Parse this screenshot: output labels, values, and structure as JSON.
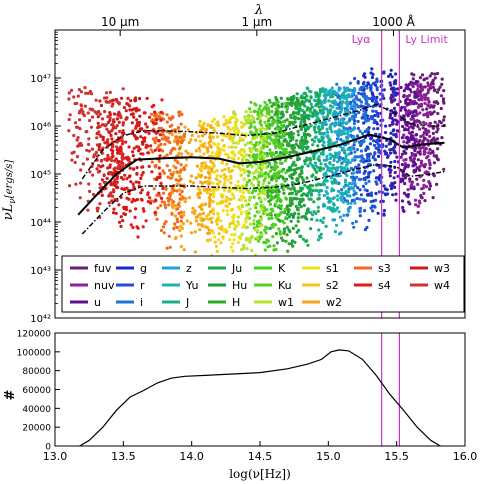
{
  "chart_data": [
    {
      "type": "scatter",
      "top_axis": {
        "label": "λ",
        "ticks": [
          {
            "label": "10 μm",
            "lambda_m": 1e-05
          },
          {
            "label": "1 μm",
            "lambda_m": 1e-06
          },
          {
            "label": "1000 Å",
            "lambda_m": 1e-07
          }
        ]
      },
      "ylabel": "νL_ν[ergs/s]",
      "yscale": "log",
      "xlim": [
        13.0,
        16.0
      ],
      "ylim_log": [
        42,
        48
      ],
      "y_ticks": [
        {
          "label": "10⁴²",
          "exp": 42
        },
        {
          "label": "10⁴³",
          "exp": 43
        },
        {
          "label": "10⁴⁴",
          "exp": 44
        },
        {
          "label": "10⁴⁵",
          "exp": 45
        },
        {
          "label": "10⁴⁶",
          "exp": 46
        },
        {
          "label": "10⁴⁷",
          "exp": 47
        }
      ],
      "vlines": [
        {
          "label": "Lyα",
          "x": 15.39,
          "color": "#cc33cc"
        },
        {
          "label": "Ly Limit",
          "x": 15.52,
          "color": "#cc33cc"
        }
      ],
      "median_curve": {
        "x": [
          13.17,
          13.3,
          13.45,
          13.6,
          13.8,
          14.0,
          14.2,
          14.35,
          14.5,
          14.7,
          14.9,
          15.1,
          15.3,
          15.45,
          15.55,
          15.7,
          15.85
        ],
        "y": [
          44.15,
          44.55,
          45.0,
          45.3,
          45.33,
          45.35,
          45.32,
          45.22,
          45.25,
          45.35,
          45.48,
          45.62,
          45.82,
          45.72,
          45.55,
          45.62,
          45.65
        ]
      },
      "upper_curve": {
        "x": [
          13.2,
          13.35,
          13.5,
          13.65,
          13.8,
          14.0,
          14.2,
          14.4,
          14.6,
          14.8,
          15.0,
          15.2,
          15.35,
          15.5,
          15.6,
          15.75,
          15.85
        ],
        "y": [
          44.9,
          45.5,
          45.8,
          45.9,
          45.9,
          45.88,
          45.85,
          45.8,
          45.85,
          46.0,
          46.15,
          46.3,
          46.45,
          46.25,
          46.05,
          46.0,
          46.0
        ]
      },
      "lower_curve": {
        "x": [
          13.2,
          13.35,
          13.5,
          13.65,
          13.8,
          14.0,
          14.2,
          14.4,
          14.6,
          14.8,
          15.0,
          15.2,
          15.35,
          15.5,
          15.6,
          15.75,
          15.85
        ],
        "y": [
          43.75,
          44.2,
          44.6,
          44.75,
          44.75,
          44.75,
          44.72,
          44.7,
          44.72,
          44.8,
          44.95,
          45.1,
          45.2,
          45.15,
          44.95,
          45.0,
          45.05
        ]
      },
      "bands": [
        {
          "name": "fuv",
          "color": "#6a1b7a",
          "x": [
            15.6,
            15.85
          ],
          "y": [
            44.2,
            47.1
          ]
        },
        {
          "name": "nuv",
          "color": "#8e1e9a",
          "x": [
            15.55,
            15.75
          ],
          "y": [
            44.1,
            46.9
          ]
        },
        {
          "name": "u",
          "color": "#5a1090",
          "x": [
            15.45,
            15.65
          ],
          "y": [
            44.0,
            47.0
          ]
        },
        {
          "name": "g",
          "color": "#1a2bc4",
          "x": [
            15.25,
            15.5
          ],
          "y": [
            43.9,
            47.2
          ]
        },
        {
          "name": "r",
          "color": "#1f4fd9",
          "x": [
            15.15,
            15.4
          ],
          "y": [
            43.8,
            47.0
          ]
        },
        {
          "name": "i",
          "color": "#1f72d6",
          "x": [
            15.05,
            15.3
          ],
          "y": [
            43.7,
            46.9
          ]
        },
        {
          "name": "z",
          "color": "#22a3d8",
          "x": [
            14.95,
            15.2
          ],
          "y": [
            43.6,
            46.8
          ]
        },
        {
          "name": "Yu",
          "color": "#1ab5b0",
          "x": [
            14.9,
            15.15
          ],
          "y": [
            43.6,
            46.8
          ]
        },
        {
          "name": "J",
          "color": "#18b08a",
          "x": [
            14.8,
            15.05
          ],
          "y": [
            43.5,
            46.8
          ]
        },
        {
          "name": "Ju",
          "color": "#1aa84a",
          "x": [
            14.7,
            14.95
          ],
          "y": [
            43.3,
            46.7
          ]
        },
        {
          "name": "Hu",
          "color": "#1f9e3a",
          "x": [
            14.6,
            14.85
          ],
          "y": [
            43.2,
            46.6
          ]
        },
        {
          "name": "H",
          "color": "#2fa52a",
          "x": [
            14.55,
            14.8
          ],
          "y": [
            43.2,
            46.6
          ]
        },
        {
          "name": "K",
          "color": "#45d01e",
          "x": [
            14.45,
            14.7
          ],
          "y": [
            43.1,
            46.5
          ]
        },
        {
          "name": "Ku",
          "color": "#55d020",
          "x": [
            14.4,
            14.65
          ],
          "y": [
            43.1,
            46.5
          ]
        },
        {
          "name": "w1",
          "color": "#b7e32a",
          "x": [
            14.3,
            14.55
          ],
          "y": [
            43.0,
            46.3
          ]
        },
        {
          "name": "s1",
          "color": "#f0e020",
          "x": [
            14.15,
            14.4
          ],
          "y": [
            43.0,
            46.2
          ]
        },
        {
          "name": "s2",
          "color": "#f6c51c",
          "x": [
            14.05,
            14.3
          ],
          "y": [
            43.0,
            46.1
          ]
        },
        {
          "name": "w2",
          "color": "#f5a31a",
          "x": [
            13.85,
            14.15
          ],
          "y": [
            43.0,
            46.0
          ]
        },
        {
          "name": "s3",
          "color": "#f06a20",
          "x": [
            13.7,
            13.95
          ],
          "y": [
            43.3,
            46.3
          ]
        },
        {
          "name": "s4",
          "color": "#e01818",
          "x": [
            13.4,
            13.8
          ],
          "y": [
            43.6,
            46.6
          ]
        },
        {
          "name": "w3",
          "color": "#cc1a1a",
          "x": [
            13.3,
            13.65
          ],
          "y": [
            43.8,
            46.6
          ]
        },
        {
          "name": "w4",
          "color": "#d03030",
          "x": [
            13.1,
            13.5
          ],
          "y": [
            43.9,
            46.8
          ]
        }
      ],
      "legend": {
        "placement": "bottom",
        "columns": [
          [
            "fuv",
            "nuv",
            "u"
          ],
          [
            "g",
            "r",
            "i"
          ],
          [
            "z",
            "Yu",
            "J"
          ],
          [
            "Ju",
            "Hu",
            "H"
          ],
          [
            "K",
            "Ku",
            "w1"
          ],
          [
            "s1",
            "s2",
            "w2"
          ],
          [
            "s3",
            "s4"
          ],
          [
            "w3",
            "w4"
          ]
        ]
      }
    },
    {
      "type": "line",
      "ylabel": "#",
      "xlabel": "log(ν[Hz])",
      "xlim": [
        13.0,
        16.0
      ],
      "ylim": [
        0,
        120000
      ],
      "y_ticks": [
        {
          "label": "0",
          "v": 0
        },
        {
          "label": "20000",
          "v": 20000
        },
        {
          "label": "40000",
          "v": 40000
        },
        {
          "label": "60000",
          "v": 60000
        },
        {
          "label": "80000",
          "v": 80000
        },
        {
          "label": "100000",
          "v": 100000
        },
        {
          "label": "120000",
          "v": 120000
        }
      ],
      "x_ticks": [
        {
          "label": "13.0",
          "v": 13.0
        },
        {
          "label": "13.5",
          "v": 13.5
        },
        {
          "label": "14.0",
          "v": 14.0
        },
        {
          "label": "14.5",
          "v": 14.5
        },
        {
          "label": "15.0",
          "v": 15.0
        },
        {
          "label": "15.5",
          "v": 15.5
        },
        {
          "label": "16.0",
          "v": 16.0
        }
      ],
      "vlines": [
        {
          "x": 15.39,
          "color": "#cc33cc"
        },
        {
          "x": 15.52,
          "color": "#cc33cc"
        }
      ],
      "series": [
        {
          "x": [
            13.18,
            13.25,
            13.35,
            13.45,
            13.55,
            13.65,
            13.75,
            13.85,
            13.95,
            14.1,
            14.3,
            14.5,
            14.7,
            14.85,
            14.95,
            15.02,
            15.08,
            15.15,
            15.25,
            15.35,
            15.45,
            15.55,
            15.65,
            15.75,
            15.82
          ],
          "y": [
            0,
            6000,
            20000,
            38000,
            52000,
            59000,
            67000,
            72000,
            74000,
            75000,
            76500,
            78000,
            82000,
            87000,
            92000,
            100000,
            102000,
            101000,
            92000,
            75000,
            55000,
            38000,
            20000,
            6000,
            0
          ]
        }
      ]
    }
  ]
}
